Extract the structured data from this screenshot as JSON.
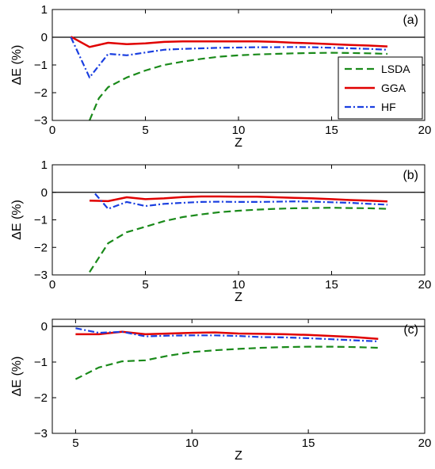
{
  "chart_data": [
    {
      "type": "line",
      "panel_label": "(a)",
      "xlabel": "Z",
      "ylabel": "ΔE (%)",
      "xlim": [
        0,
        20
      ],
      "ylim": [
        -3,
        1
      ],
      "xticks": [
        0,
        5,
        10,
        15,
        20
      ],
      "yticks": [
        -3,
        -2,
        -1,
        0,
        1
      ],
      "zero_line": true,
      "legend": {
        "placement": "right",
        "entries": [
          "LSDA",
          "GGA",
          "HF"
        ]
      },
      "series": [
        {
          "name": "LSDA",
          "color": "#1a8a1a",
          "style": "dashed",
          "x": [
            2,
            2.5,
            3,
            4,
            5,
            6,
            7,
            8,
            9,
            10,
            11,
            12,
            13,
            14,
            15,
            16,
            17,
            18
          ],
          "y": [
            -3.0,
            -2.2,
            -1.8,
            -1.45,
            -1.2,
            -1.0,
            -0.88,
            -0.78,
            -0.7,
            -0.65,
            -0.62,
            -0.6,
            -0.58,
            -0.57,
            -0.56,
            -0.57,
            -0.58,
            -0.6
          ]
        },
        {
          "name": "GGA",
          "color": "#e00000",
          "style": "solid",
          "x": [
            1,
            2,
            3,
            4,
            5,
            6,
            7,
            8,
            9,
            10,
            11,
            12,
            13,
            14,
            15,
            16,
            17,
            18
          ],
          "y": [
            0.02,
            -0.35,
            -0.2,
            -0.25,
            -0.22,
            -0.17,
            -0.15,
            -0.15,
            -0.15,
            -0.15,
            -0.15,
            -0.17,
            -0.2,
            -0.22,
            -0.25,
            -0.28,
            -0.3,
            -0.33
          ]
        },
        {
          "name": "HF",
          "color": "#1a3fe0",
          "style": "dashdot",
          "x": [
            1,
            2,
            3,
            4,
            5,
            6,
            7,
            8,
            9,
            10,
            11,
            12,
            13,
            14,
            15,
            16,
            17,
            18
          ],
          "y": [
            0.0,
            -1.45,
            -0.6,
            -0.65,
            -0.55,
            -0.45,
            -0.42,
            -0.4,
            -0.38,
            -0.37,
            -0.36,
            -0.36,
            -0.35,
            -0.36,
            -0.38,
            -0.4,
            -0.42,
            -0.45
          ]
        }
      ]
    },
    {
      "type": "line",
      "panel_label": "(b)",
      "xlabel": "Z",
      "ylabel": "ΔE (%)",
      "xlim": [
        0,
        20
      ],
      "ylim": [
        -3,
        1
      ],
      "xticks": [
        0,
        5,
        10,
        15,
        20
      ],
      "yticks": [
        -3,
        -2,
        -1,
        0,
        1
      ],
      "zero_line": true,
      "series": [
        {
          "name": "LSDA",
          "color": "#1a8a1a",
          "style": "dashed",
          "x": [
            2,
            3,
            4,
            5,
            6,
            7,
            8,
            9,
            10,
            11,
            12,
            13,
            14,
            15,
            16,
            17,
            18
          ],
          "y": [
            -2.9,
            -1.85,
            -1.45,
            -1.25,
            -1.05,
            -0.9,
            -0.8,
            -0.72,
            -0.67,
            -0.63,
            -0.6,
            -0.58,
            -0.57,
            -0.56,
            -0.57,
            -0.58,
            -0.6
          ]
        },
        {
          "name": "GGA",
          "color": "#e00000",
          "style": "solid",
          "x": [
            2,
            3,
            4,
            5,
            6,
            7,
            8,
            9,
            10,
            11,
            12,
            13,
            14,
            15,
            16,
            17,
            18
          ],
          "y": [
            -0.3,
            -0.32,
            -0.18,
            -0.25,
            -0.22,
            -0.17,
            -0.15,
            -0.15,
            -0.16,
            -0.16,
            -0.18,
            -0.2,
            -0.22,
            -0.25,
            -0.28,
            -0.3,
            -0.33
          ]
        },
        {
          "name": "HF",
          "color": "#1a3fe0",
          "style": "dashdot",
          "x": [
            2.3,
            3,
            4,
            5,
            6,
            7,
            8,
            9,
            10,
            11,
            12,
            13,
            14,
            15,
            16,
            17,
            18
          ],
          "y": [
            -0.05,
            -0.6,
            -0.35,
            -0.5,
            -0.42,
            -0.38,
            -0.35,
            -0.34,
            -0.35,
            -0.35,
            -0.34,
            -0.33,
            -0.34,
            -0.36,
            -0.38,
            -0.42,
            -0.45
          ]
        }
      ]
    },
    {
      "type": "line",
      "panel_label": "(c)",
      "xlabel": "Z",
      "ylabel": "ΔE (%)",
      "xlim": [
        4,
        20
      ],
      "ylim": [
        -3,
        0.2
      ],
      "xticks": [
        5,
        10,
        15,
        20
      ],
      "yticks": [
        -3,
        -2,
        -1,
        0
      ],
      "zero_line": true,
      "series": [
        {
          "name": "LSDA",
          "color": "#1a8a1a",
          "style": "dashed",
          "x": [
            5,
            6,
            7,
            8,
            9,
            10,
            11,
            12,
            13,
            14,
            15,
            16,
            17,
            18
          ],
          "y": [
            -1.48,
            -1.15,
            -0.98,
            -0.95,
            -0.82,
            -0.72,
            -0.67,
            -0.63,
            -0.6,
            -0.58,
            -0.57,
            -0.57,
            -0.58,
            -0.6
          ]
        },
        {
          "name": "GGA",
          "color": "#e00000",
          "style": "solid",
          "x": [
            5,
            6,
            7,
            8,
            9,
            10,
            11,
            12,
            13,
            14,
            15,
            16,
            17,
            18
          ],
          "y": [
            -0.22,
            -0.22,
            -0.15,
            -0.22,
            -0.2,
            -0.18,
            -0.17,
            -0.2,
            -0.21,
            -0.22,
            -0.24,
            -0.27,
            -0.3,
            -0.35
          ]
        },
        {
          "name": "HF",
          "color": "#1a3fe0",
          "style": "dashdot",
          "x": [
            5,
            6,
            7,
            8,
            9,
            10,
            11,
            12,
            13,
            14,
            15,
            16,
            17,
            18
          ],
          "y": [
            -0.05,
            -0.18,
            -0.15,
            -0.28,
            -0.26,
            -0.25,
            -0.25,
            -0.27,
            -0.3,
            -0.31,
            -0.33,
            -0.36,
            -0.39,
            -0.42
          ]
        }
      ]
    }
  ]
}
